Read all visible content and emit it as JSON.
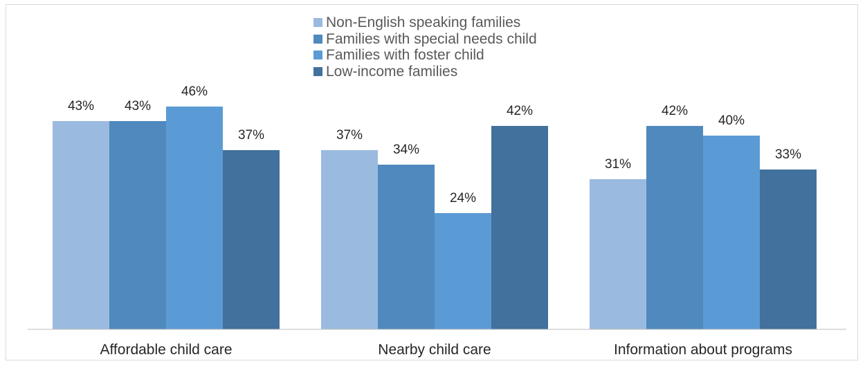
{
  "chart_data": {
    "type": "bar",
    "categories": [
      "Affordable child care",
      "Nearby child care",
      "Information about programs"
    ],
    "series": [
      {
        "name": "Non-English speaking families",
        "values": [
          43,
          37,
          31
        ],
        "labels": [
          "43%",
          "37%",
          "31%"
        ],
        "color": "#9bbae0"
      },
      {
        "name": "Families with special needs child",
        "values": [
          43,
          34,
          42
        ],
        "labels": [
          "43%",
          "34%",
          "42%"
        ],
        "color": "#4f89bd"
      },
      {
        "name": "Families with foster child",
        "values": [
          46,
          24,
          40
        ],
        "labels": [
          "46%",
          "24%",
          "40%"
        ],
        "color": "#5b9bd5"
      },
      {
        "name": "Low-income families",
        "values": [
          37,
          42,
          33
        ],
        "labels": [
          "37%",
          "42%",
          "33%"
        ],
        "color": "#41719c"
      }
    ],
    "title": "",
    "xlabel": "",
    "ylabel": "",
    "ylim": [
      0,
      50
    ],
    "grid": false,
    "legend_position": "top-center",
    "value_suffix": "%"
  }
}
